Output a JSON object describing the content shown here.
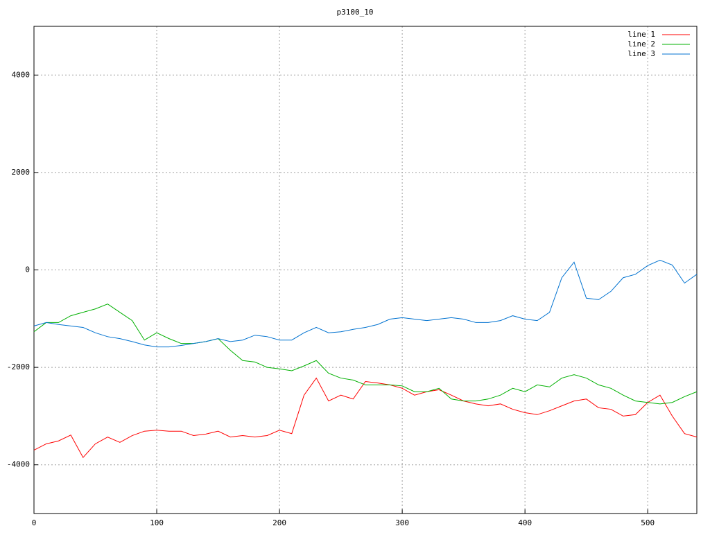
{
  "chart_data": {
    "type": "line",
    "title": "p3100_10",
    "x": [
      0,
      10,
      20,
      30,
      40,
      50,
      60,
      70,
      80,
      90,
      100,
      110,
      120,
      130,
      140,
      150,
      160,
      170,
      180,
      190,
      200,
      210,
      220,
      230,
      240,
      250,
      260,
      270,
      280,
      290,
      300,
      310,
      320,
      330,
      340,
      350,
      360,
      370,
      380,
      390,
      400,
      410,
      420,
      430,
      440,
      450,
      460,
      470,
      480,
      490,
      500,
      510,
      520,
      530,
      540
    ],
    "series": [
      {
        "name": "line 1",
        "color": "#ff0000",
        "values": [
          -3700,
          -3570,
          -3510,
          -3390,
          -3850,
          -3570,
          -3430,
          -3540,
          -3400,
          -3310,
          -3290,
          -3310,
          -3310,
          -3400,
          -3370,
          -3310,
          -3430,
          -3400,
          -3430,
          -3400,
          -3290,
          -3360,
          -2570,
          -2220,
          -2690,
          -2570,
          -2650,
          -2290,
          -2320,
          -2360,
          -2430,
          -2570,
          -2500,
          -2460,
          -2570,
          -2690,
          -2750,
          -2790,
          -2750,
          -2860,
          -2930,
          -2970,
          -2890,
          -2790,
          -2690,
          -2650,
          -2830,
          -2860,
          -3000,
          -2970,
          -2720,
          -2570,
          -3000,
          -3360,
          -3430
        ]
      },
      {
        "name": "line 2",
        "color": "#00b000",
        "values": [
          -1270,
          -1080,
          -1080,
          -940,
          -870,
          -800,
          -700,
          -870,
          -1040,
          -1440,
          -1290,
          -1410,
          -1510,
          -1510,
          -1470,
          -1410,
          -1650,
          -1860,
          -1890,
          -2000,
          -2030,
          -2070,
          -1970,
          -1860,
          -2120,
          -2220,
          -2260,
          -2360,
          -2360,
          -2360,
          -2380,
          -2500,
          -2500,
          -2430,
          -2650,
          -2690,
          -2690,
          -2650,
          -2570,
          -2430,
          -2500,
          -2360,
          -2400,
          -2220,
          -2150,
          -2220,
          -2360,
          -2430,
          -2570,
          -2690,
          -2720,
          -2750,
          -2720,
          -2600,
          -2500
        ]
      },
      {
        "name": "line 3",
        "color": "#0072d0",
        "values": [
          -1150,
          -1080,
          -1120,
          -1150,
          -1180,
          -1290,
          -1370,
          -1410,
          -1470,
          -1540,
          -1580,
          -1580,
          -1550,
          -1510,
          -1470,
          -1410,
          -1470,
          -1440,
          -1340,
          -1370,
          -1440,
          -1440,
          -1290,
          -1180,
          -1290,
          -1270,
          -1220,
          -1180,
          -1120,
          -1010,
          -980,
          -1010,
          -1040,
          -1010,
          -980,
          -1010,
          -1080,
          -1080,
          -1040,
          -940,
          -1010,
          -1040,
          -870,
          -160,
          160,
          -580,
          -610,
          -440,
          -160,
          -90,
          90,
          200,
          100,
          -270,
          -90
        ]
      }
    ],
    "xlim": [
      0,
      540
    ],
    "ylim": [
      -5000,
      5000
    ],
    "xticks": [
      0,
      100,
      200,
      300,
      400,
      500
    ],
    "yticks": [
      -4000,
      -2000,
      0,
      2000,
      4000
    ],
    "grid": true,
    "legend": "top-right"
  }
}
